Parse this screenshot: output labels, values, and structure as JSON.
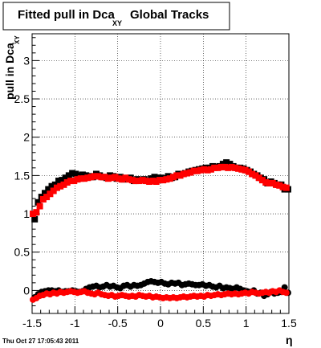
{
  "chart_data": {
    "type": "scatter",
    "title": "Fitted pull in Dca",
    "title_subscript": "XY",
    "title_suffix": "Global Tracks",
    "xlabel": "η",
    "ylabel": "pull in Dca",
    "ylabel_subscript": "XY",
    "xlim": [
      -1.5,
      1.5
    ],
    "ylim": [
      -0.3,
      3.35
    ],
    "x_ticks": [
      "-1.5",
      "-1",
      "-0.5",
      "0",
      "0.5",
      "1",
      "1.5"
    ],
    "y_ticks": [
      "0",
      "0.5",
      "1",
      "1.5",
      "2",
      "2.5",
      "3"
    ],
    "grid": true,
    "timestamp": "Thu Oct 27 17:05:43 2011",
    "colors": {
      "series_1": "#000000",
      "series_2": "#ff0000"
    },
    "series": [
      {
        "marker": "square",
        "color": "#000000",
        "x": [
          -1.47,
          -1.43,
          -1.39,
          -1.35,
          -1.31,
          -1.27,
          -1.23,
          -1.19,
          -1.15,
          -1.11,
          -1.07,
          -1.03,
          -0.99,
          -0.95,
          -0.91,
          -0.87,
          -0.83,
          -0.79,
          -0.75,
          -0.71,
          -0.67,
          -0.63,
          -0.59,
          -0.55,
          -0.51,
          -0.47,
          -0.43,
          -0.39,
          -0.35,
          -0.31,
          -0.27,
          -0.23,
          -0.19,
          -0.15,
          -0.11,
          -0.07,
          -0.03,
          0.01,
          0.05,
          0.09,
          0.13,
          0.17,
          0.21,
          0.25,
          0.29,
          0.33,
          0.37,
          0.41,
          0.45,
          0.49,
          0.53,
          0.57,
          0.61,
          0.65,
          0.69,
          0.73,
          0.77,
          0.81,
          0.85,
          0.89,
          0.93,
          0.97,
          1.01,
          1.05,
          1.09,
          1.13,
          1.17,
          1.21,
          1.25,
          1.29,
          1.33,
          1.37,
          1.41,
          1.45,
          1.49
        ],
        "y": [
          0.93,
          1.15,
          1.22,
          1.27,
          1.32,
          1.36,
          1.38,
          1.43,
          1.44,
          1.47,
          1.5,
          1.53,
          1.52,
          1.5,
          1.51,
          1.5,
          1.49,
          1.48,
          1.52,
          1.5,
          1.48,
          1.47,
          1.5,
          1.49,
          1.46,
          1.48,
          1.45,
          1.46,
          1.47,
          1.43,
          1.45,
          1.44,
          1.45,
          1.43,
          1.46,
          1.48,
          1.47,
          1.47,
          1.46,
          1.49,
          1.47,
          1.48,
          1.52,
          1.52,
          1.53,
          1.55,
          1.56,
          1.57,
          1.58,
          1.59,
          1.6,
          1.6,
          1.62,
          1.61,
          1.62,
          1.65,
          1.67,
          1.65,
          1.62,
          1.6,
          1.6,
          1.59,
          1.57,
          1.55,
          1.52,
          1.5,
          1.47,
          1.45,
          1.4,
          1.42,
          1.4,
          1.38,
          1.38,
          1.32,
          1.32
        ]
      },
      {
        "marker": "square",
        "color": "#ff0000",
        "x": [
          -1.49,
          -1.45,
          -1.41,
          -1.37,
          -1.33,
          -1.29,
          -1.25,
          -1.21,
          -1.17,
          -1.13,
          -1.09,
          -1.05,
          -1.01,
          -0.97,
          -0.93,
          -0.89,
          -0.85,
          -0.81,
          -0.77,
          -0.73,
          -0.69,
          -0.65,
          -0.61,
          -0.57,
          -0.53,
          -0.49,
          -0.45,
          -0.41,
          -0.37,
          -0.33,
          -0.29,
          -0.25,
          -0.21,
          -0.17,
          -0.13,
          -0.09,
          -0.05,
          -0.01,
          0.03,
          0.07,
          0.11,
          0.15,
          0.19,
          0.23,
          0.27,
          0.31,
          0.35,
          0.39,
          0.43,
          0.47,
          0.51,
          0.55,
          0.59,
          0.63,
          0.67,
          0.71,
          0.75,
          0.79,
          0.83,
          0.87,
          0.91,
          0.95,
          0.99,
          1.03,
          1.07,
          1.11,
          1.15,
          1.19,
          1.23,
          1.27,
          1.31,
          1.35,
          1.39,
          1.43,
          1.47
        ],
        "y": [
          1.0,
          1.02,
          1.1,
          1.19,
          1.22,
          1.26,
          1.3,
          1.34,
          1.36,
          1.38,
          1.41,
          1.43,
          1.43,
          1.45,
          1.46,
          1.46,
          1.47,
          1.48,
          1.49,
          1.49,
          1.48,
          1.48,
          1.46,
          1.47,
          1.48,
          1.46,
          1.45,
          1.47,
          1.45,
          1.44,
          1.43,
          1.43,
          1.44,
          1.43,
          1.42,
          1.43,
          1.42,
          1.44,
          1.44,
          1.45,
          1.46,
          1.48,
          1.5,
          1.5,
          1.52,
          1.53,
          1.54,
          1.56,
          1.56,
          1.57,
          1.58,
          1.57,
          1.58,
          1.6,
          1.6,
          1.61,
          1.61,
          1.6,
          1.61,
          1.6,
          1.59,
          1.58,
          1.57,
          1.55,
          1.52,
          1.5,
          1.47,
          1.44,
          1.41,
          1.4,
          1.4,
          1.38,
          1.37,
          1.35,
          1.34
        ]
      },
      {
        "marker": "circle",
        "color": "#000000",
        "x": [
          -1.47,
          -1.43,
          -1.39,
          -1.35,
          -1.31,
          -1.27,
          -1.23,
          -1.19,
          -1.15,
          -1.11,
          -1.07,
          -1.03,
          -0.99,
          -0.95,
          -0.91,
          -0.87,
          -0.83,
          -0.79,
          -0.75,
          -0.71,
          -0.67,
          -0.63,
          -0.59,
          -0.55,
          -0.51,
          -0.47,
          -0.43,
          -0.39,
          -0.35,
          -0.31,
          -0.27,
          -0.23,
          -0.19,
          -0.15,
          -0.11,
          -0.07,
          -0.03,
          0.01,
          0.05,
          0.09,
          0.13,
          0.17,
          0.21,
          0.25,
          0.29,
          0.33,
          0.37,
          0.41,
          0.45,
          0.49,
          0.53,
          0.57,
          0.61,
          0.65,
          0.69,
          0.73,
          0.77,
          0.81,
          0.85,
          0.89,
          0.93,
          0.97,
          1.01,
          1.05,
          1.09,
          1.13,
          1.17,
          1.21,
          1.25,
          1.29,
          1.33,
          1.37,
          1.41,
          1.45,
          1.49
        ],
        "y": [
          -0.09,
          -0.05,
          -0.02,
          -0.01,
          0.0,
          0.0,
          -0.01,
          0.0,
          -0.02,
          -0.01,
          -0.01,
          0.0,
          -0.01,
          -0.02,
          -0.01,
          0.02,
          0.04,
          0.05,
          0.06,
          0.04,
          0.05,
          0.07,
          0.05,
          0.06,
          0.04,
          0.03,
          0.06,
          0.07,
          0.05,
          0.07,
          0.06,
          0.07,
          0.09,
          0.11,
          0.12,
          0.11,
          0.1,
          0.11,
          0.09,
          0.08,
          0.1,
          0.09,
          0.1,
          0.07,
          0.08,
          0.09,
          0.08,
          0.07,
          0.07,
          0.08,
          0.06,
          0.07,
          0.05,
          0.04,
          0.06,
          0.03,
          0.04,
          0.03,
          0.02,
          0.04,
          0.02,
          0.0,
          -0.01,
          -0.02,
          0.0,
          -0.04,
          -0.03,
          -0.07,
          -0.05,
          -0.02,
          -0.04,
          -0.03,
          -0.02,
          0.04,
          -0.03
        ]
      },
      {
        "marker": "circle",
        "color": "#ff0000",
        "x": [
          -1.49,
          -1.45,
          -1.41,
          -1.37,
          -1.33,
          -1.29,
          -1.25,
          -1.21,
          -1.17,
          -1.13,
          -1.09,
          -1.05,
          -1.01,
          -0.97,
          -0.93,
          -0.89,
          -0.85,
          -0.81,
          -0.77,
          -0.73,
          -0.69,
          -0.65,
          -0.61,
          -0.57,
          -0.53,
          -0.49,
          -0.45,
          -0.41,
          -0.37,
          -0.33,
          -0.29,
          -0.25,
          -0.21,
          -0.17,
          -0.13,
          -0.09,
          -0.05,
          -0.01,
          0.03,
          0.07,
          0.11,
          0.15,
          0.19,
          0.23,
          0.27,
          0.31,
          0.35,
          0.39,
          0.43,
          0.47,
          0.51,
          0.55,
          0.59,
          0.63,
          0.67,
          0.71,
          0.75,
          0.79,
          0.83,
          0.87,
          0.91,
          0.95,
          0.99,
          1.03,
          1.07,
          1.11,
          1.15,
          1.19,
          1.23,
          1.27,
          1.31,
          1.35,
          1.39,
          1.43,
          1.47
        ],
        "y": [
          -0.12,
          -0.1,
          -0.07,
          -0.06,
          -0.04,
          -0.05,
          -0.03,
          -0.04,
          -0.02,
          -0.03,
          -0.02,
          -0.01,
          -0.02,
          -0.03,
          -0.02,
          -0.01,
          -0.03,
          -0.04,
          -0.05,
          -0.03,
          -0.05,
          -0.06,
          -0.07,
          -0.06,
          -0.08,
          -0.07,
          -0.06,
          -0.07,
          -0.08,
          -0.07,
          -0.08,
          -0.06,
          -0.07,
          -0.08,
          -0.07,
          -0.09,
          -0.08,
          -0.09,
          -0.1,
          -0.09,
          -0.1,
          -0.09,
          -0.1,
          -0.09,
          -0.08,
          -0.09,
          -0.08,
          -0.07,
          -0.08,
          -0.07,
          -0.08,
          -0.06,
          -0.07,
          -0.06,
          -0.05,
          -0.06,
          -0.05,
          -0.04,
          -0.05,
          -0.04,
          -0.05,
          -0.04,
          -0.03,
          -0.04,
          -0.02,
          -0.03,
          -0.04,
          -0.03,
          -0.02,
          -0.03,
          -0.01,
          -0.02,
          0.0,
          -0.02,
          -0.03
        ]
      }
    ]
  }
}
